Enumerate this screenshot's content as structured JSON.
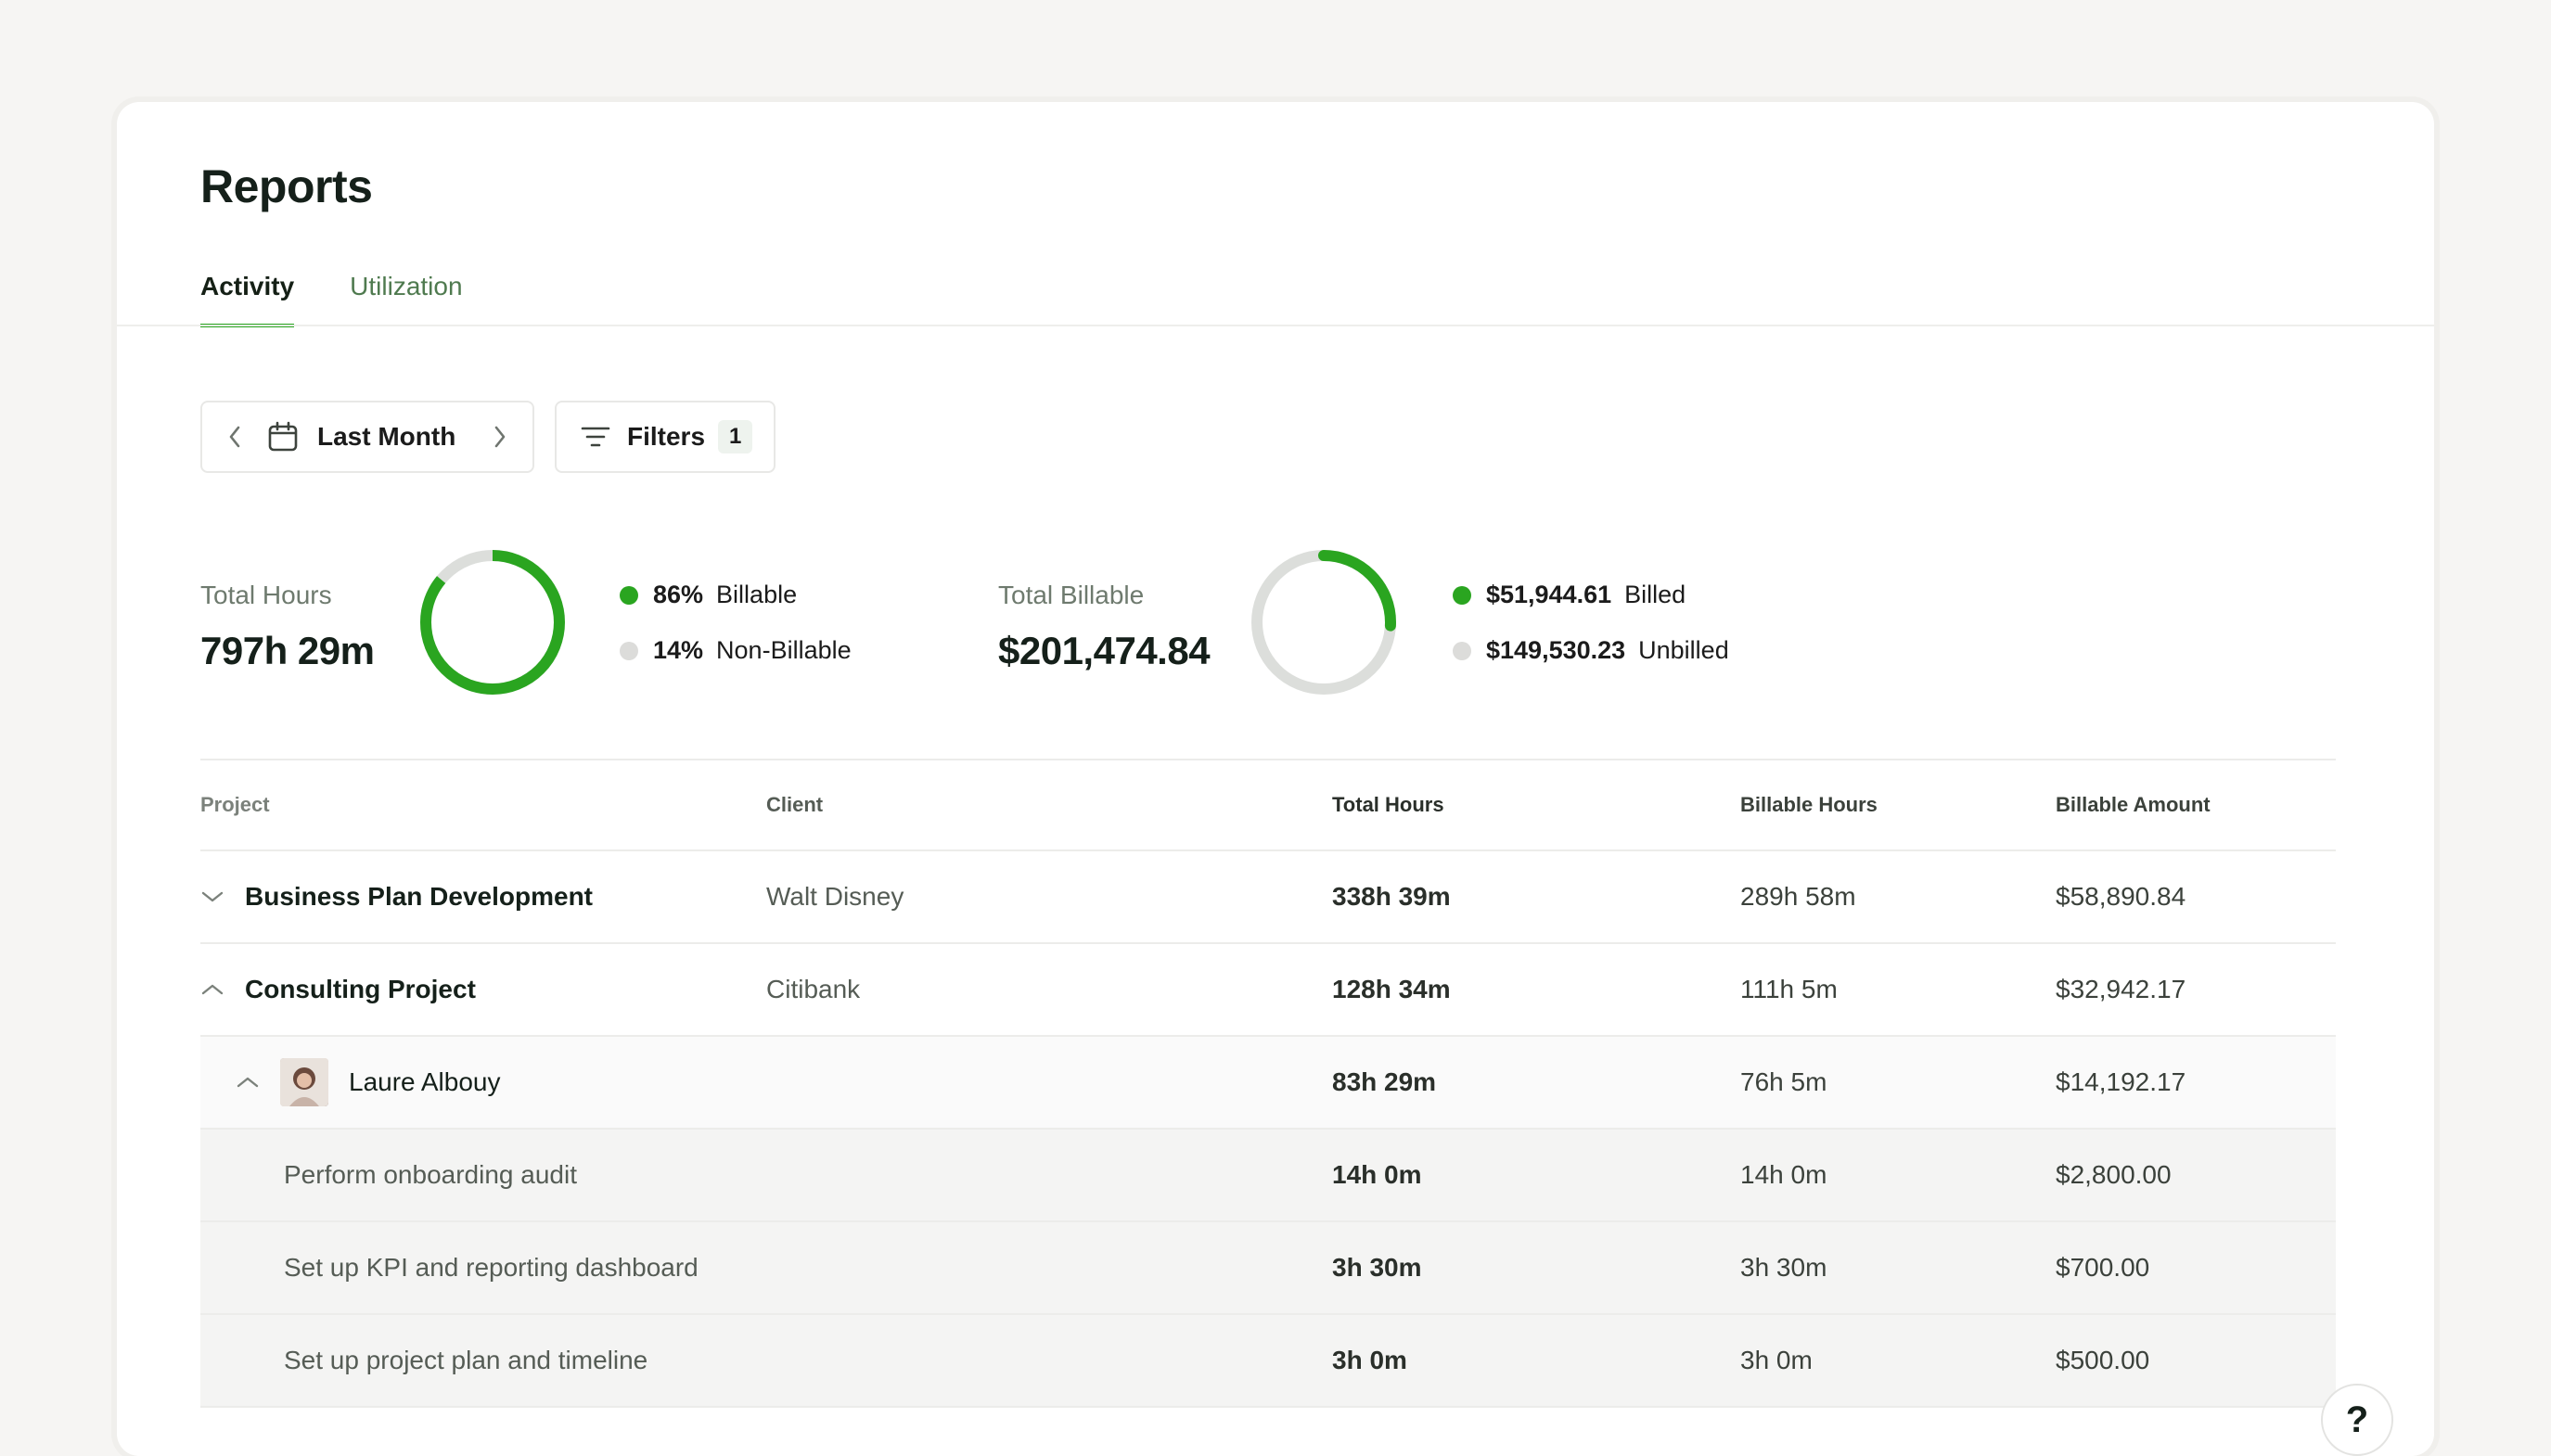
{
  "page": {
    "title": "Reports"
  },
  "tabs": [
    {
      "label": "Activity",
      "active": true
    },
    {
      "label": "Utilization",
      "active": false
    }
  ],
  "controls": {
    "date_range": "Last Month",
    "filters_label": "Filters",
    "filters_count": "1"
  },
  "stats": {
    "hours": {
      "label": "Total Hours",
      "value": "797h 29m",
      "billable_pct": "86%",
      "billable_label": "Billable",
      "nonbillable_pct": "14%",
      "nonbillable_label": "Non-Billable",
      "billable_fraction": 0.86
    },
    "billable": {
      "label": "Total Billable",
      "value": "$201,474.84",
      "billed_value": "$51,944.61",
      "billed_label": "Billed",
      "unbilled_value": "$149,530.23",
      "unbilled_label": "Unbilled",
      "billed_fraction": 0.258
    }
  },
  "colors": {
    "accent": "#2aa520",
    "muted": "#dcdedb",
    "muted_dot": "#dcdcda"
  },
  "table": {
    "headers": [
      "Project",
      "Client",
      "Total Hours",
      "Billable Hours",
      "Billable Amount"
    ],
    "rows": [
      {
        "type": "project",
        "expanded": false,
        "project": "Business Plan Development",
        "client": "Walt Disney",
        "total_hours": "338h 39m",
        "billable_hours": "289h 58m",
        "billable_amount": "$58,890.84"
      },
      {
        "type": "project",
        "expanded": true,
        "project": "Consulting Project",
        "client": "Citibank",
        "total_hours": "128h 34m",
        "billable_hours": "111h 5m",
        "billable_amount": "$32,942.17"
      },
      {
        "type": "person",
        "expanded": true,
        "project": "Laure Albouy",
        "client": "",
        "total_hours": "83h 29m",
        "billable_hours": "76h 5m",
        "billable_amount": "$14,192.17"
      },
      {
        "type": "task",
        "project": "Perform onboarding audit",
        "client": "",
        "total_hours": "14h 0m",
        "billable_hours": "14h 0m",
        "billable_amount": "$2,800.00"
      },
      {
        "type": "task",
        "project": "Set up KPI and reporting dashboard",
        "client": "",
        "total_hours": "3h 30m",
        "billable_hours": "3h 30m",
        "billable_amount": "$700.00"
      },
      {
        "type": "task",
        "project": "Set up project plan and timeline",
        "client": "",
        "total_hours": "3h 0m",
        "billable_hours": "3h 0m",
        "billable_amount": "$500.00"
      }
    ]
  },
  "help": {
    "label": "?"
  }
}
